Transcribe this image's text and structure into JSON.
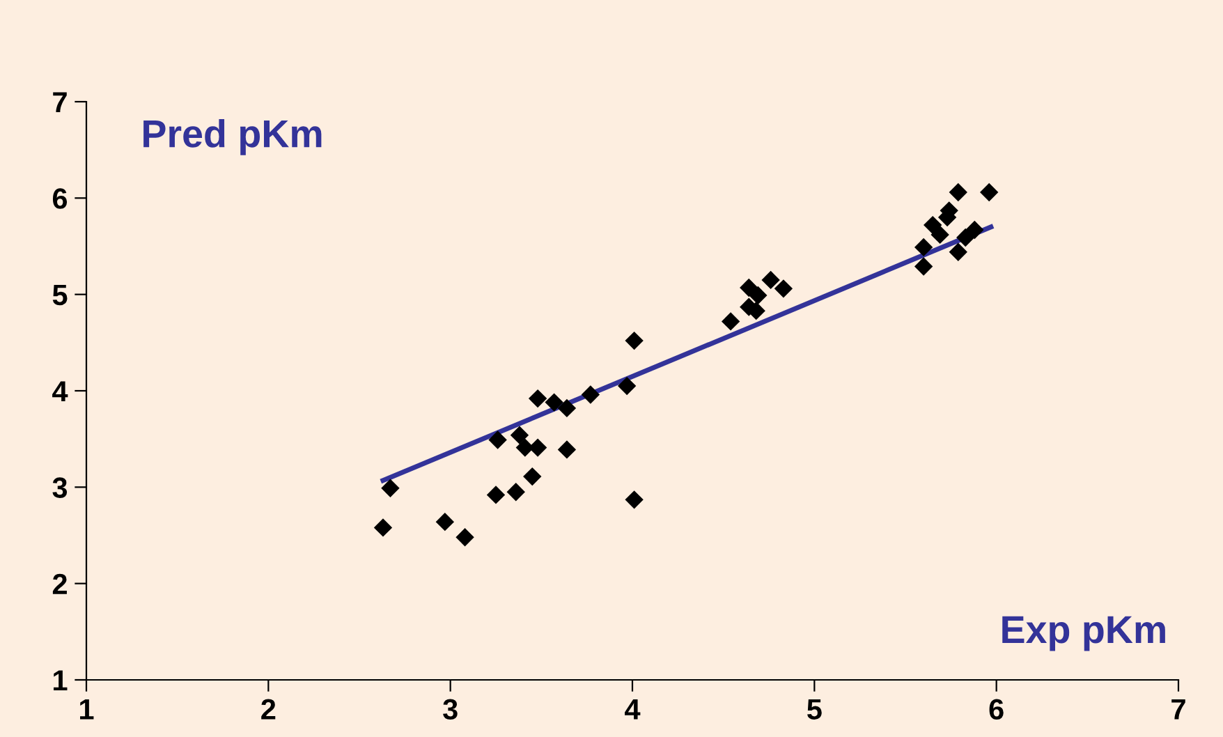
{
  "chart_data": {
    "type": "scatter",
    "xlabel": "Exp pKm",
    "ylabel": "Pred pKm",
    "xlim": [
      1,
      7
    ],
    "xticks": [
      1,
      2,
      3,
      4,
      5,
      6,
      7
    ],
    "ylim": [
      1,
      7
    ],
    "yticks": [
      1,
      2,
      3,
      4,
      5,
      6,
      7
    ],
    "grid": false,
    "legend": false,
    "series": [
      {
        "marker": "diamond",
        "color": "#000000",
        "x": [
          2.63,
          2.67,
          2.97,
          3.08,
          3.25,
          3.26,
          3.36,
          3.38,
          3.41,
          3.45,
          3.48,
          3.48,
          3.57,
          3.64,
          3.64,
          3.77,
          3.97,
          4.01,
          4.01,
          4.54,
          4.64,
          4.64,
          4.69,
          4.68,
          4.76,
          4.83,
          5.6,
          5.6,
          5.65,
          5.69,
          5.73,
          5.74,
          5.79,
          5.79,
          5.83,
          5.88,
          5.96
        ],
        "values": [
          2.58,
          2.99,
          2.64,
          2.48,
          2.92,
          3.49,
          2.95,
          3.54,
          3.41,
          3.11,
          3.41,
          3.92,
          3.88,
          3.39,
          3.82,
          3.96,
          4.05,
          4.52,
          2.87,
          4.72,
          5.07,
          4.87,
          4.99,
          4.83,
          5.15,
          5.06,
          5.29,
          5.49,
          5.72,
          5.62,
          5.8,
          5.87,
          6.06,
          5.44,
          5.59,
          5.67,
          6.06
        ]
      },
      {
        "type": "line",
        "color": "#333399",
        "x": [
          2.63,
          5.97
        ],
        "values": [
          3.07,
          5.7
        ]
      }
    ]
  }
}
